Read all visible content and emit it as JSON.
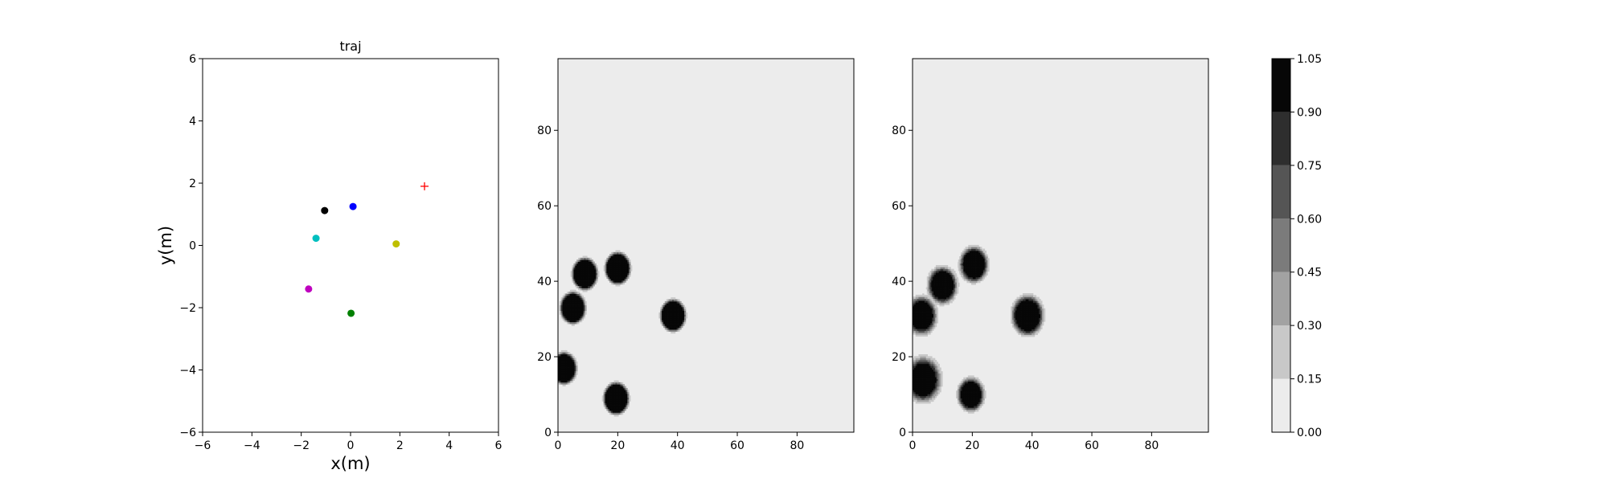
{
  "figure": {
    "colorbar": {
      "levels": [
        0.0,
        0.15,
        0.3,
        0.45,
        0.6,
        0.75,
        0.9,
        1.05
      ],
      "tick_labels": [
        "0.00",
        "0.15",
        "0.30",
        "0.45",
        "0.60",
        "0.75",
        "0.90",
        "1.05"
      ],
      "colors": [
        "#ececec",
        "#c8c8c8",
        "#a2a2a2",
        "#7b7b7b",
        "#555555",
        "#2e2e2e",
        "#070707"
      ]
    }
  },
  "chart_data": [
    {
      "type": "scatter",
      "title": "traj",
      "xlabel": "x(m)",
      "ylabel": "y(m)",
      "xlim": [
        -6,
        6
      ],
      "ylim": [
        -6,
        6
      ],
      "xticks": [
        -6,
        -4,
        -2,
        0,
        2,
        4,
        6
      ],
      "yticks": [
        -6,
        -4,
        -2,
        0,
        2,
        4,
        6
      ],
      "xtick_labels": [
        "−6",
        "−4",
        "−2",
        "0",
        "2",
        "4",
        "6"
      ],
      "ytick_labels": [
        "−6",
        "−4",
        "−2",
        "0",
        "2",
        "4",
        "6"
      ],
      "grid": false,
      "points": [
        {
          "x": -1.05,
          "y": 1.12,
          "color": "#000000"
        },
        {
          "x": 0.1,
          "y": 1.25,
          "color": "#0000ff"
        },
        {
          "x": -1.4,
          "y": 0.23,
          "color": "#00bfbf"
        },
        {
          "x": 1.85,
          "y": 0.05,
          "color": "#bfbf00"
        },
        {
          "x": -1.7,
          "y": -1.4,
          "color": "#bf00bf"
        },
        {
          "x": 0.02,
          "y": -2.18,
          "color": "#008000"
        }
      ],
      "target": {
        "x": 3.0,
        "y": 1.9,
        "marker": "+",
        "color": "#ff0000"
      }
    },
    {
      "type": "heatmap",
      "xlim": [
        0,
        99
      ],
      "ylim": [
        0,
        99
      ],
      "xticks": [
        0,
        20,
        40,
        60,
        80
      ],
      "yticks": [
        0,
        20,
        40,
        60,
        80
      ],
      "xtick_labels": [
        "0",
        "20",
        "40",
        "60",
        "80"
      ],
      "ytick_labels": [
        "0",
        "20",
        "40",
        "60",
        "80"
      ],
      "background_value": 0.0,
      "blobs": [
        {
          "x": 9,
          "y": 42,
          "r": 3.4,
          "value": 1.0,
          "softness": 0.25
        },
        {
          "x": 20,
          "y": 43.5,
          "r": 3.4,
          "value": 1.0,
          "softness": 0.25
        },
        {
          "x": 5,
          "y": 33,
          "r": 3.4,
          "value": 1.0,
          "softness": 0.25
        },
        {
          "x": 38.5,
          "y": 31,
          "r": 3.4,
          "value": 1.0,
          "softness": 0.25
        },
        {
          "x": 2,
          "y": 17,
          "r": 3.4,
          "value": 1.0,
          "softness": 0.25
        },
        {
          "x": 19.5,
          "y": 9,
          "r": 3.4,
          "value": 1.0,
          "softness": 0.25
        }
      ]
    },
    {
      "type": "heatmap",
      "xlim": [
        0,
        99
      ],
      "ylim": [
        0,
        99
      ],
      "xticks": [
        0,
        20,
        40,
        60,
        80
      ],
      "yticks": [
        0,
        20,
        40,
        60,
        80
      ],
      "xtick_labels": [
        "0",
        "20",
        "40",
        "60",
        "80"
      ],
      "ytick_labels": [
        "0",
        "20",
        "40",
        "60",
        "80"
      ],
      "background_value": 0.0,
      "blobs": [
        {
          "x": 20.5,
          "y": 44.5,
          "r": 3.2,
          "value": 1.0,
          "softness": 0.45
        },
        {
          "x": 10,
          "y": 39,
          "r": 3.2,
          "value": 1.0,
          "softness": 0.5
        },
        {
          "x": 38.5,
          "y": 31,
          "r": 3.6,
          "value": 1.0,
          "softness": 0.45
        },
        {
          "x": 3,
          "y": 31,
          "r": 3.2,
          "value": 1.0,
          "softness": 0.55
        },
        {
          "x": 3.5,
          "y": 14,
          "r": 3.6,
          "value": 1.0,
          "softness": 0.6
        },
        {
          "x": 19.5,
          "y": 10,
          "r": 3.0,
          "value": 1.0,
          "softness": 0.45
        }
      ]
    }
  ]
}
